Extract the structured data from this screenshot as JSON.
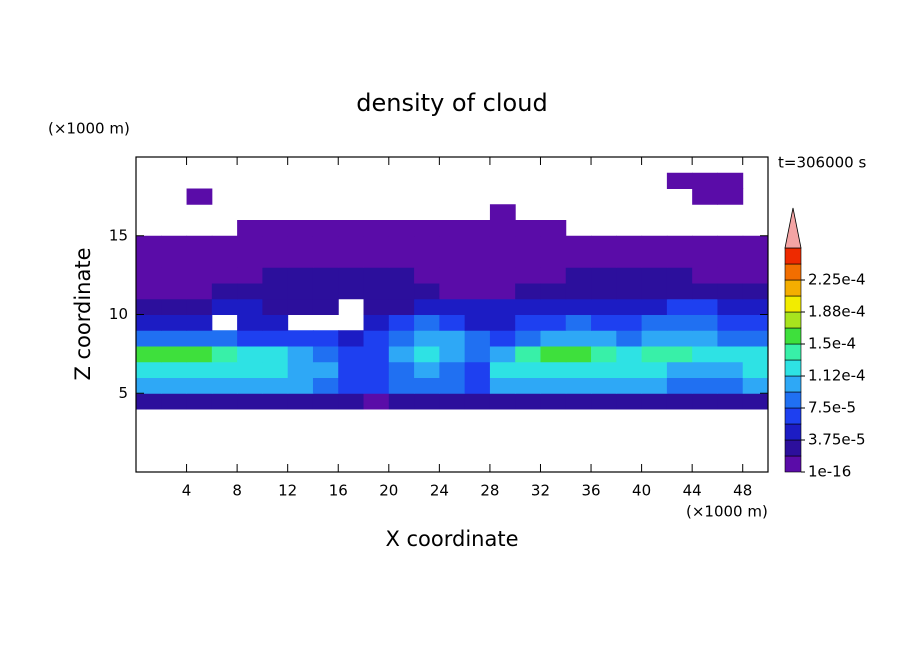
{
  "chart_data": {
    "type": "heatmap",
    "title": "density of cloud",
    "time_label": "t=306000 s",
    "x_label": "X coordinate",
    "y_label": "Z coordinate",
    "x_unit": "(×1000 m)",
    "y_unit": "(×1000 m)",
    "xlim": [
      0,
      50
    ],
    "ylim": [
      0,
      20
    ],
    "xticks": [
      4,
      8,
      12,
      16,
      20,
      24,
      28,
      32,
      36,
      40,
      44,
      48
    ],
    "yticks": [
      5,
      10,
      15
    ],
    "x_edges": [
      0,
      2,
      4,
      6,
      8,
      10,
      12,
      14,
      16,
      18,
      20,
      22,
      24,
      26,
      28,
      30,
      32,
      34,
      36,
      38,
      40,
      42,
      44,
      46,
      48,
      50
    ],
    "y_edges": [
      4,
      5,
      6,
      7,
      8,
      9,
      10,
      11,
      12,
      13,
      14,
      15,
      16,
      17,
      18,
      19
    ],
    "z": [
      [
        2.5e-05,
        2.5e-05,
        2.5e-05,
        2.5e-05,
        2.5e-05,
        2.5e-05,
        2.5e-05,
        2.5e-05,
        2.5e-05,
        5e-06,
        2.5e-05,
        2.5e-05,
        2.5e-05,
        2.5e-05,
        2.5e-05,
        2.5e-05,
        2.5e-05,
        2.5e-05,
        2.5e-05,
        2.5e-05,
        2.5e-05,
        2.5e-05,
        2.5e-05,
        2.5e-05,
        2.5e-05
      ],
      [
        0.0001,
        0.0001,
        0.0001,
        0.0001,
        0.0001,
        0.0001,
        0.0001,
        8.5e-05,
        6.5e-05,
        6.5e-05,
        8.5e-05,
        8.5e-05,
        8.5e-05,
        6.5e-05,
        0.0001,
        0.0001,
        0.0001,
        0.0001,
        0.0001,
        0.0001,
        0.0001,
        8.5e-05,
        8.5e-05,
        8.5e-05,
        0.0001
      ],
      [
        0.00012,
        0.00012,
        0.00012,
        0.00012,
        0.00012,
        0.00012,
        0.0001,
        0.0001,
        6.5e-05,
        6.5e-05,
        8.5e-05,
        0.0001,
        8.5e-05,
        6.5e-05,
        0.00012,
        0.00012,
        0.00012,
        0.00012,
        0.00012,
        0.00012,
        0.00012,
        0.0001,
        0.0001,
        0.0001,
        0.00012
      ],
      [
        0.00016,
        0.00016,
        0.00016,
        0.00014,
        0.00012,
        0.00012,
        0.0001,
        8.5e-05,
        6.5e-05,
        6.5e-05,
        0.0001,
        0.00012,
        0.0001,
        8.5e-05,
        0.0001,
        0.00014,
        0.00016,
        0.00016,
        0.00014,
        0.00012,
        0.00014,
        0.00014,
        0.00012,
        0.00012,
        0.00012
      ],
      [
        8.5e-05,
        8.5e-05,
        8.5e-05,
        8.5e-05,
        6.5e-05,
        6.5e-05,
        6.5e-05,
        6.5e-05,
        4.5e-05,
        6.5e-05,
        8.5e-05,
        0.0001,
        0.0001,
        8.5e-05,
        6.5e-05,
        8.5e-05,
        0.0001,
        0.0001,
        0.0001,
        8.5e-05,
        0.0001,
        0.0001,
        0.0001,
        8.5e-05,
        8.5e-05
      ],
      [
        4.5e-05,
        4.5e-05,
        4.5e-05,
        null,
        4.5e-05,
        4.5e-05,
        null,
        null,
        null,
        4.5e-05,
        6.5e-05,
        8.5e-05,
        6.5e-05,
        4.5e-05,
        4.5e-05,
        6.5e-05,
        6.5e-05,
        8.5e-05,
        6.5e-05,
        6.5e-05,
        8.5e-05,
        8.5e-05,
        8.5e-05,
        6.5e-05,
        6.5e-05
      ],
      [
        2.5e-05,
        2.5e-05,
        2.5e-05,
        4.5e-05,
        4.5e-05,
        2.5e-05,
        2.5e-05,
        2.5e-05,
        null,
        2.5e-05,
        2.5e-05,
        4.5e-05,
        4.5e-05,
        4.5e-05,
        4.5e-05,
        4.5e-05,
        4.5e-05,
        4.5e-05,
        4.5e-05,
        4.5e-05,
        4.5e-05,
        6.5e-05,
        6.5e-05,
        4.5e-05,
        4.5e-05
      ],
      [
        5e-06,
        5e-06,
        5e-06,
        2.5e-05,
        2.5e-05,
        2.5e-05,
        2.5e-05,
        2.5e-05,
        2.5e-05,
        2.5e-05,
        2.5e-05,
        2.5e-05,
        5e-06,
        5e-06,
        5e-06,
        2.5e-05,
        2.5e-05,
        2.5e-05,
        2.5e-05,
        2.5e-05,
        2.5e-05,
        2.5e-05,
        2.5e-05,
        2.5e-05,
        2.5e-05
      ],
      [
        5e-06,
        5e-06,
        5e-06,
        5e-06,
        5e-06,
        2.5e-05,
        2.5e-05,
        2.5e-05,
        2.5e-05,
        2.5e-05,
        2.5e-05,
        5e-06,
        5e-06,
        5e-06,
        5e-06,
        5e-06,
        5e-06,
        2.5e-05,
        2.5e-05,
        2.5e-05,
        2.5e-05,
        2.5e-05,
        5e-06,
        5e-06,
        5e-06
      ],
      [
        5e-06,
        5e-06,
        5e-06,
        5e-06,
        5e-06,
        5e-06,
        5e-06,
        5e-06,
        5e-06,
        5e-06,
        5e-06,
        5e-06,
        5e-06,
        5e-06,
        5e-06,
        5e-06,
        5e-06,
        5e-06,
        5e-06,
        5e-06,
        5e-06,
        5e-06,
        5e-06,
        5e-06,
        5e-06
      ],
      [
        5e-06,
        5e-06,
        5e-06,
        5e-06,
        5e-06,
        5e-06,
        5e-06,
        5e-06,
        5e-06,
        5e-06,
        5e-06,
        5e-06,
        5e-06,
        5e-06,
        5e-06,
        5e-06,
        5e-06,
        5e-06,
        5e-06,
        5e-06,
        5e-06,
        5e-06,
        5e-06,
        5e-06,
        5e-06
      ],
      [
        null,
        null,
        null,
        null,
        5e-06,
        5e-06,
        5e-06,
        5e-06,
        5e-06,
        5e-06,
        5e-06,
        5e-06,
        5e-06,
        5e-06,
        5e-06,
        5e-06,
        5e-06,
        null,
        null,
        null,
        null,
        null,
        null,
        null,
        null
      ],
      [
        null,
        null,
        null,
        null,
        null,
        null,
        null,
        null,
        null,
        null,
        null,
        null,
        null,
        null,
        5e-06,
        null,
        null,
        null,
        null,
        null,
        null,
        null,
        null,
        null,
        null
      ],
      [
        null,
        null,
        5e-06,
        null,
        null,
        null,
        null,
        null,
        null,
        null,
        null,
        null,
        null,
        null,
        null,
        null,
        null,
        null,
        null,
        null,
        null,
        null,
        5e-06,
        5e-06,
        null
      ],
      [
        null,
        null,
        null,
        null,
        null,
        null,
        null,
        null,
        null,
        null,
        null,
        null,
        null,
        null,
        null,
        null,
        null,
        null,
        null,
        null,
        null,
        5e-06,
        5e-06,
        5e-06,
        null
      ]
    ],
    "colorbar": {
      "levels": [
        1e-16,
        1.875e-05,
        3.75e-05,
        5.625e-05,
        7.5e-05,
        9.375e-05,
        0.0001125,
        0.00013125,
        0.00015,
        0.00016875,
        0.0001875,
        0.00020625,
        0.000225,
        0.00024375,
        0.0002625
      ],
      "colors": [
        "#5a0ca8",
        "#2c0f9c",
        "#1c1cc4",
        "#1e40f0",
        "#2070f2",
        "#2ea8f6",
        "#2ee2e4",
        "#38f0a8",
        "#3ee03c",
        "#a8e41e",
        "#f2ec00",
        "#f4ae00",
        "#f26e00",
        "#ee2a00"
      ],
      "extend_color": "#f4a4a4",
      "ticks": [
        {
          "value": 1e-16,
          "label": "1e-16"
        },
        {
          "value": 3.75e-05,
          "label": "3.75e-5"
        },
        {
          "value": 7.5e-05,
          "label": "7.5e-5"
        },
        {
          "value": 0.0001125,
          "label": "1.12e-4"
        },
        {
          "value": 0.00015,
          "label": "1.5e-4"
        },
        {
          "value": 0.0001875,
          "label": "1.88e-4"
        },
        {
          "value": 0.000225,
          "label": "2.25e-4"
        }
      ]
    }
  }
}
